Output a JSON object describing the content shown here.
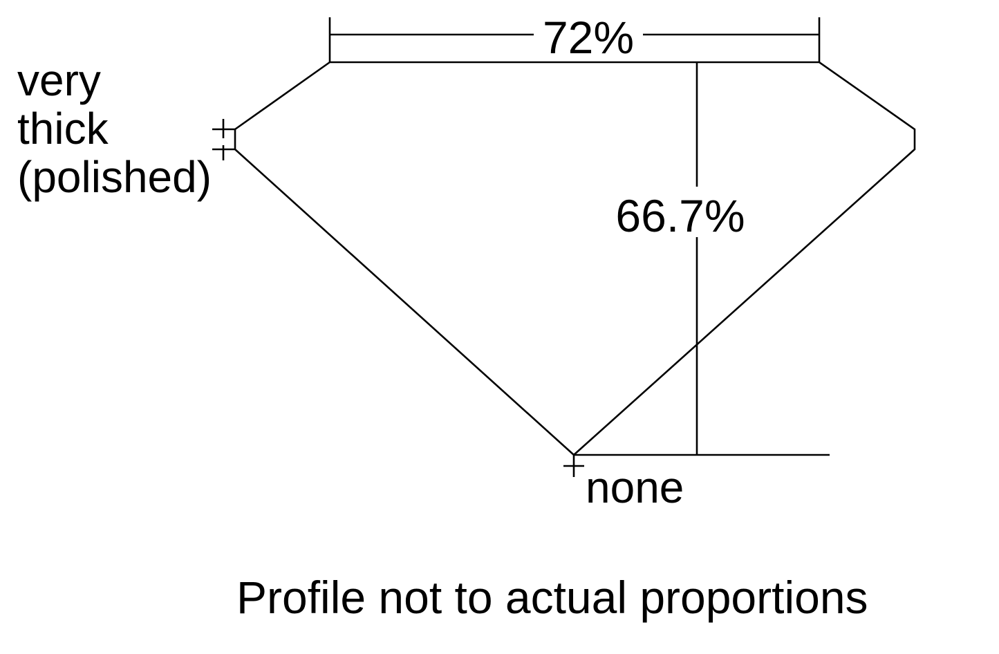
{
  "labels": {
    "table_percent": "72%",
    "depth_percent": "66.7%",
    "girdle_line1": "very",
    "girdle_line2": "thick",
    "girdle_line3": "(polished)",
    "culet": "none",
    "caption": "Profile not to actual proportions"
  },
  "colors": {
    "stroke": "#000000",
    "background": "#ffffff"
  }
}
